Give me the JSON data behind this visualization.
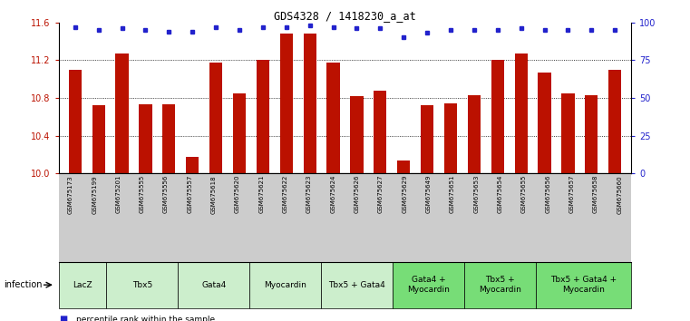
{
  "title": "GDS4328 / 1418230_a_at",
  "samples": [
    "GSM675173",
    "GSM675199",
    "GSM675201",
    "GSM675555",
    "GSM675556",
    "GSM675557",
    "GSM675618",
    "GSM675620",
    "GSM675621",
    "GSM675622",
    "GSM675623",
    "GSM675624",
    "GSM675626",
    "GSM675627",
    "GSM675629",
    "GSM675649",
    "GSM675651",
    "GSM675653",
    "GSM675654",
    "GSM675655",
    "GSM675656",
    "GSM675657",
    "GSM675658",
    "GSM675660"
  ],
  "bar_values": [
    11.1,
    10.72,
    11.27,
    10.73,
    10.73,
    10.17,
    11.17,
    10.85,
    11.2,
    11.48,
    11.48,
    11.17,
    10.82,
    10.88,
    10.14,
    10.72,
    10.74,
    10.83,
    11.2,
    11.27,
    11.07,
    10.85,
    10.83,
    11.1
  ],
  "percentile_values": [
    97,
    95,
    96,
    95,
    94,
    94,
    97,
    95,
    97,
    97,
    98,
    97,
    96,
    96,
    90,
    93,
    95,
    95,
    95,
    96,
    95,
    95,
    95,
    95
  ],
  "groups": [
    {
      "label": "LacZ",
      "start": 0,
      "end": 2,
      "color": "#cceecc"
    },
    {
      "label": "Tbx5",
      "start": 2,
      "end": 5,
      "color": "#cceecc"
    },
    {
      "label": "Gata4",
      "start": 5,
      "end": 8,
      "color": "#cceecc"
    },
    {
      "label": "Myocardin",
      "start": 8,
      "end": 11,
      "color": "#cceecc"
    },
    {
      "label": "Tbx5 + Gata4",
      "start": 11,
      "end": 14,
      "color": "#cceecc"
    },
    {
      "label": "Gata4 +\nMyocardin",
      "start": 14,
      "end": 17,
      "color": "#77dd77"
    },
    {
      "label": "Tbx5 +\nMyocardin",
      "start": 17,
      "end": 20,
      "color": "#77dd77"
    },
    {
      "label": "Tbx5 + Gata4 +\nMyocardin",
      "start": 20,
      "end": 24,
      "color": "#77dd77"
    }
  ],
  "ylim": [
    10.0,
    11.6
  ],
  "yticks": [
    10.0,
    10.4,
    10.8,
    11.2,
    11.6
  ],
  "y2ticks": [
    0,
    25,
    50,
    75,
    100
  ],
  "bar_color": "#bb1100",
  "percentile_color": "#2222cc",
  "background_color": "#ffffff",
  "ticklabel_bg": "#cccccc",
  "infection_label": "infection"
}
